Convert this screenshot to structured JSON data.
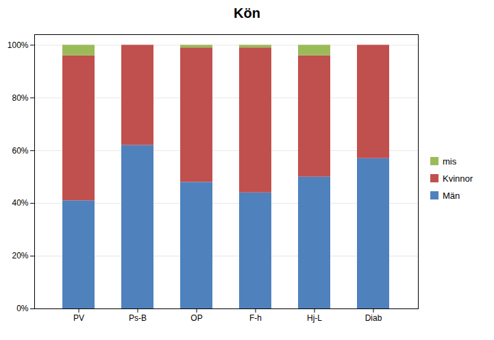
{
  "chart_data": {
    "type": "bar",
    "stacked": true,
    "title": "Kön",
    "categories": [
      "PV",
      "Ps-B",
      "OP",
      "F-h",
      "Hj-L",
      "Diab"
    ],
    "series": [
      {
        "name": "Män",
        "color": "#4F81BD",
        "values": [
          0.41,
          0.62,
          0.48,
          0.44,
          0.5,
          0.57
        ]
      },
      {
        "name": "Kvinnor",
        "color": "#C0504D",
        "values": [
          0.55,
          0.38,
          0.51,
          0.55,
          0.46,
          0.43
        ]
      },
      {
        "name": "mis",
        "color": "#9BBB59",
        "values": [
          0.04,
          0.0,
          0.01,
          0.01,
          0.04,
          0.0
        ]
      }
    ],
    "ylim": [
      0,
      1.04
    ],
    "yticks": [
      {
        "value": 0.0,
        "label": "0%"
      },
      {
        "value": 0.2,
        "label": "20%"
      },
      {
        "value": 0.4,
        "label": "40%"
      },
      {
        "value": 0.6,
        "label": "60%"
      },
      {
        "value": 0.8,
        "label": "80%"
      },
      {
        "value": 1.0,
        "label": "100%"
      }
    ],
    "grid": true,
    "legend": "right"
  }
}
